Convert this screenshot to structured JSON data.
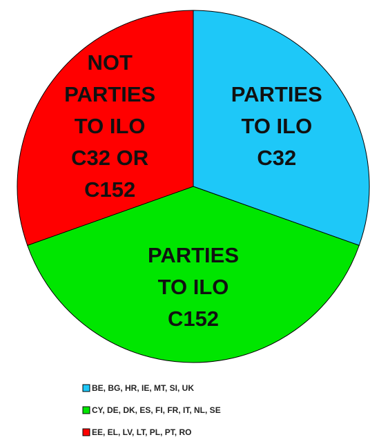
{
  "chart_data": {
    "type": "pie",
    "categories": [
      "BE, BG, HR, IE, MT, SI, UK",
      "CY, DE, DK, ES, FI, FR, IT, NL, SE",
      "EE, EL, LV, LT, PL, PT, RO"
    ],
    "values": [
      7,
      9,
      7
    ],
    "colors": [
      "#1ec8f8",
      "#00e600",
      "#ff0000"
    ],
    "slice_labels": [
      [
        "PARTIES",
        "TO ILO",
        "C32"
      ],
      [
        "PARTIES",
        "TO ILO",
        "C152"
      ],
      [
        "NOT",
        "PARTIES",
        "TO ILO",
        "C32 OR",
        "C152"
      ]
    ],
    "legend": "bottom"
  }
}
